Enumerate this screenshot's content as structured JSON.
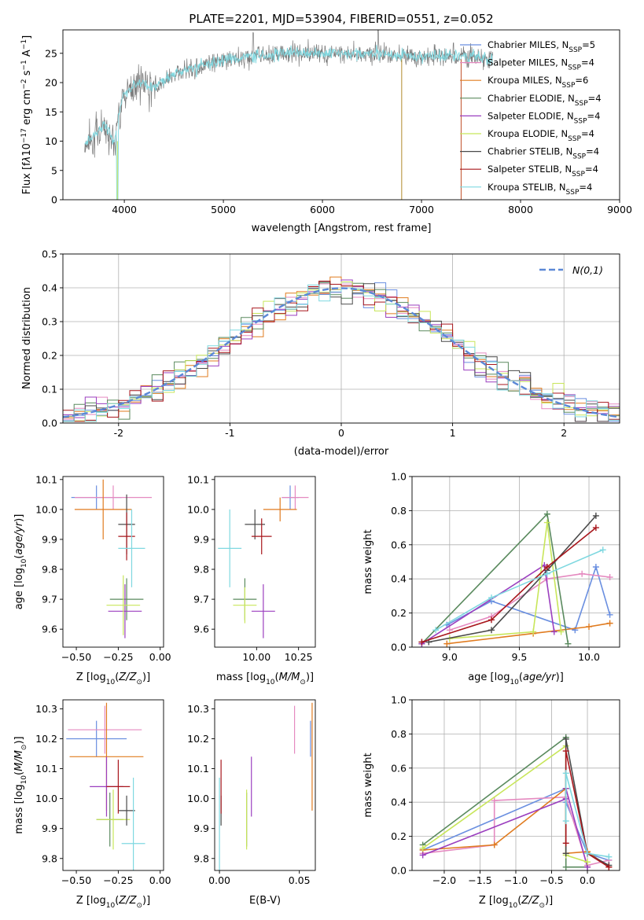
{
  "title": "PLATE=2201, MJD=53904, FIBERID=0551, z=0.052",
  "colors": {
    "Chabrier MILES": "#6a8fe0",
    "Salpeter MILES": "#e58ac0",
    "Kroupa MILES": "#e07b1f",
    "Chabrier ELODIE": "#5a8a5e",
    "Salpeter ELODIE": "#9b3fbf",
    "Kroupa ELODIE": "#c8e65a",
    "Chabrier STELIB": "#4a4a4a",
    "Salpeter STELIB": "#a8161c",
    "Kroupa STELIB": "#7fd8e0"
  },
  "legend_spectrum": [
    {
      "name": "Chabrier MILES",
      "nssp": "5"
    },
    {
      "name": "Salpeter MILES",
      "nssp": "4"
    },
    {
      "name": "Kroupa MILES",
      "nssp": "6"
    },
    {
      "name": "Chabrier ELODIE",
      "nssp": "4"
    },
    {
      "name": "Salpeter ELODIE",
      "nssp": "4"
    },
    {
      "name": "Kroupa ELODIE",
      "nssp": "4"
    },
    {
      "name": "Chabrier STELIB",
      "nssp": "4"
    },
    {
      "name": "Salpeter STELIB",
      "nssp": "4"
    },
    {
      "name": "Kroupa STELIB",
      "nssp": "4"
    }
  ],
  "chart_data": [
    {
      "id": "spectrum",
      "type": "line",
      "xlabel": "wavelength [Angstrom, rest frame]",
      "ylabel": "Flux [f_λ 10^-17 erg cm^-2 s^-1 A^-1]",
      "xlim": [
        3380,
        9000
      ],
      "ylim": [
        0,
        29
      ],
      "xticks": [
        4000,
        5000,
        6000,
        7000,
        8000,
        9000
      ],
      "yticks": [
        0,
        5,
        10,
        15,
        20,
        25
      ],
      "grid": false,
      "legend": "top-right",
      "continuum": [
        [
          3600,
          9.5
        ],
        [
          3700,
          11
        ],
        [
          3800,
          13
        ],
        [
          3900,
          10
        ],
        [
          3950,
          15
        ],
        [
          4000,
          18
        ],
        [
          4100,
          19.5
        ],
        [
          4200,
          20
        ],
        [
          4300,
          19
        ],
        [
          4400,
          20.5
        ],
        [
          4500,
          21.5
        ],
        [
          4700,
          22.5
        ],
        [
          4900,
          23.5
        ],
        [
          5100,
          24
        ],
        [
          5300,
          24.5
        ],
        [
          5600,
          25
        ],
        [
          6000,
          25
        ],
        [
          6500,
          25
        ],
        [
          7000,
          24.5
        ],
        [
          7500,
          24.5
        ],
        [
          7700,
          24
        ]
      ],
      "features": [
        {
          "description": "drop near 3930",
          "x": 3930,
          "y": 0
        },
        {
          "description": "spike near 6563",
          "x": 6563,
          "y": 29
        },
        {
          "description": "drop near 6800",
          "x": 6800,
          "y": 0
        },
        {
          "description": "drop near 7400",
          "x": 7400,
          "y": 0
        }
      ]
    },
    {
      "id": "residual_histogram",
      "type": "histogram",
      "xlabel": "(data-model)/error",
      "ylabel": "Normed distribution",
      "xlim": [
        -2.5,
        2.5
      ],
      "ylim": [
        0,
        0.5
      ],
      "xticks": [
        -2,
        -1,
        0,
        1,
        2
      ],
      "yticks": [
        0.0,
        0.1,
        0.2,
        0.3,
        0.4,
        0.5
      ],
      "grid": true,
      "legend": "top-right",
      "legend_label": "N(0,1)",
      "bin_width": 0.1,
      "reference_curve": "normal pdf mean 0 sigma 1"
    },
    {
      "id": "age_vs_Z",
      "type": "errorbar",
      "xlabel": "Z [log10(Z/Z☉)]",
      "ylabel": "age [log10(age/yr)]",
      "xlim": [
        -0.58,
        0.02
      ],
      "ylim": [
        9.54,
        10.11
      ],
      "xticks": [
        -0.5,
        -0.25,
        0.0
      ],
      "yticks": [
        9.6,
        9.7,
        9.8,
        9.9,
        10.0,
        10.1
      ],
      "points": [
        {
          "model": "Chabrier MILES",
          "x": -0.38,
          "xerr": 0.15,
          "y": 10.04,
          "yerr": 0.04
        },
        {
          "model": "Salpeter MILES",
          "x": -0.28,
          "xerr": 0.23,
          "y": 10.04,
          "yerr": 0.04
        },
        {
          "model": "Kroupa MILES",
          "x": -0.34,
          "xerr": 0.17,
          "y": 10.0,
          "yerr": 0.1
        },
        {
          "model": "Chabrier ELODIE",
          "x": -0.2,
          "xerr": 0.1,
          "y": 9.7,
          "yerr": 0.07
        },
        {
          "model": "Salpeter ELODIE",
          "x": -0.21,
          "xerr": 0.1,
          "y": 9.66,
          "yerr": 0.09
        },
        {
          "model": "Kroupa ELODIE",
          "x": -0.22,
          "xerr": 0.1,
          "y": 9.68,
          "yerr": 0.1
        },
        {
          "model": "Chabrier STELIB",
          "x": -0.2,
          "xerr": 0.05,
          "y": 9.95,
          "yerr": 0.1
        },
        {
          "model": "Salpeter STELIB",
          "x": -0.2,
          "xerr": 0.05,
          "y": 9.91,
          "yerr": 0.08
        },
        {
          "model": "Kroupa STELIB",
          "x": -0.17,
          "xerr": 0.08,
          "y": 9.87,
          "yerr": 0.13
        }
      ]
    },
    {
      "id": "age_vs_mass",
      "type": "errorbar",
      "xlabel": "mass [log10(M/M☉)]",
      "ylabel": "",
      "xlim": [
        9.75,
        10.35
      ],
      "ylim": [
        9.54,
        10.11
      ],
      "xticks": [
        10.0,
        10.25
      ],
      "yticks": [
        9.6,
        9.7,
        9.8,
        9.9,
        10.0,
        10.1
      ],
      "points": [
        {
          "model": "Chabrier MILES",
          "x": 10.2,
          "xerr": 0.05,
          "y": 10.04,
          "yerr": 0.04
        },
        {
          "model": "Salpeter MILES",
          "x": 10.23,
          "xerr": 0.08,
          "y": 10.04,
          "yerr": 0.04
        },
        {
          "model": "Kroupa MILES",
          "x": 10.14,
          "xerr": 0.1,
          "y": 10.0,
          "yerr": 0.04
        },
        {
          "model": "Chabrier ELODIE",
          "x": 9.93,
          "xerr": 0.07,
          "y": 9.7,
          "yerr": 0.07
        },
        {
          "model": "Salpeter ELODIE",
          "x": 10.04,
          "xerr": 0.07,
          "y": 9.66,
          "yerr": 0.09
        },
        {
          "model": "Kroupa ELODIE",
          "x": 9.93,
          "xerr": 0.07,
          "y": 9.68,
          "yerr": 0.06
        },
        {
          "model": "Chabrier STELIB",
          "x": 9.99,
          "xerr": 0.06,
          "y": 9.95,
          "yerr": 0.05
        },
        {
          "model": "Salpeter STELIB",
          "x": 10.03,
          "xerr": 0.06,
          "y": 9.91,
          "yerr": 0.06
        },
        {
          "model": "Kroupa STELIB",
          "x": 9.84,
          "xerr": 0.07,
          "y": 9.87,
          "yerr": 0.13
        }
      ]
    },
    {
      "id": "massweight_vs_age",
      "type": "line",
      "xlabel": "age [log10(age/yr)]",
      "ylabel": "mass weight",
      "xlim": [
        8.73,
        10.22
      ],
      "ylim": [
        0,
        1.0
      ],
      "xticks": [
        9.0,
        9.5,
        10.0
      ],
      "yticks": [
        0.0,
        0.2,
        0.4,
        0.6,
        0.8,
        1.0
      ],
      "grid": true,
      "series": [
        {
          "model": "Chabrier MILES",
          "x": [
            8.98,
            9.3,
            9.9,
            10.05,
            10.15
          ],
          "y": [
            0.13,
            0.27,
            0.1,
            0.47,
            0.19
          ]
        },
        {
          "model": "Salpeter MILES",
          "x": [
            9.0,
            9.3,
            9.7,
            9.95,
            10.15
          ],
          "y": [
            0.1,
            0.18,
            0.4,
            0.43,
            0.41
          ]
        },
        {
          "model": "Kroupa MILES",
          "x": [
            8.98,
            9.6,
            10.0,
            10.15
          ],
          "y": [
            0.02,
            0.08,
            0.12,
            0.14
          ]
        },
        {
          "model": "Chabrier ELODIE",
          "x": [
            8.8,
            9.7,
            9.85
          ],
          "y": [
            0.02,
            0.78,
            0.02
          ]
        },
        {
          "model": "Salpeter ELODIE",
          "x": [
            8.8,
            9.68,
            9.75
          ],
          "y": [
            0.02,
            0.48,
            0.09
          ]
        },
        {
          "model": "Kroupa ELODIE",
          "x": [
            9.0,
            9.6,
            9.7,
            9.8
          ],
          "y": [
            0.05,
            0.09,
            0.73,
            0.09
          ]
        },
        {
          "model": "Chabrier STELIB",
          "x": [
            8.85,
            9.3,
            9.7,
            10.05
          ],
          "y": [
            0.03,
            0.1,
            0.45,
            0.77
          ]
        },
        {
          "model": "Salpeter STELIB",
          "x": [
            8.8,
            9.3,
            9.7,
            10.05
          ],
          "y": [
            0.03,
            0.16,
            0.47,
            0.7
          ]
        },
        {
          "model": "Kroupa STELIB",
          "x": [
            8.9,
            9.3,
            9.7,
            10.1
          ],
          "y": [
            0.1,
            0.29,
            0.43,
            0.57
          ]
        }
      ]
    },
    {
      "id": "mass_vs_Z",
      "type": "errorbar",
      "xlabel": "Z [log10(Z/Z☉)]",
      "ylabel": "mass [log10(M/M☉)]",
      "xlim": [
        -0.58,
        0.02
      ],
      "ylim": [
        9.76,
        10.33
      ],
      "xticks": [
        -0.5,
        -0.25,
        0.0
      ],
      "yticks": [
        9.8,
        9.9,
        10.0,
        10.1,
        10.2,
        10.3
      ],
      "points": [
        {
          "model": "Chabrier MILES",
          "x": -0.38,
          "xerr": 0.18,
          "y": 10.2,
          "yerr": 0.06
        },
        {
          "model": "Salpeter MILES",
          "x": -0.33,
          "xerr": 0.22,
          "y": 10.23,
          "yerr": 0.08
        },
        {
          "model": "Kroupa MILES",
          "x": -0.32,
          "xerr": 0.22,
          "y": 10.14,
          "yerr": 0.18
        },
        {
          "model": "Chabrier ELODIE",
          "x": -0.3,
          "xerr": 0.08,
          "y": 9.93,
          "yerr": 0.09
        },
        {
          "model": "Salpeter ELODIE",
          "x": -0.32,
          "xerr": 0.1,
          "y": 10.04,
          "yerr": 0.1
        },
        {
          "model": "Kroupa ELODIE",
          "x": -0.28,
          "xerr": 0.1,
          "y": 9.93,
          "yerr": 0.1
        },
        {
          "model": "Chabrier STELIB",
          "x": -0.2,
          "xerr": 0.05,
          "y": 9.96,
          "yerr": 0.05
        },
        {
          "model": "Salpeter STELIB",
          "x": -0.25,
          "xerr": 0.07,
          "y": 10.04,
          "yerr": 0.09
        },
        {
          "model": "Kroupa STELIB",
          "x": -0.16,
          "xerr": 0.07,
          "y": 9.85,
          "yerr": 0.22
        }
      ]
    },
    {
      "id": "mass_vs_EBV",
      "type": "errorbar",
      "xlabel": "E(B-V)",
      "ylabel": "",
      "xlim": [
        -0.003,
        0.06
      ],
      "ylim": [
        9.76,
        10.33
      ],
      "xticks": [
        0.0,
        0.05
      ],
      "yticks": [
        9.8,
        9.9,
        10.0,
        10.1,
        10.2,
        10.3
      ],
      "points": [
        {
          "model": "Chabrier MILES",
          "x": 0.057,
          "y": 10.2,
          "yerr": 0.06
        },
        {
          "model": "Salpeter MILES",
          "x": 0.047,
          "y": 10.23,
          "yerr": 0.08
        },
        {
          "model": "Kroupa MILES",
          "x": 0.058,
          "y": 10.14,
          "yerr": 0.18
        },
        {
          "model": "Chabrier ELODIE",
          "x": 0.017,
          "y": 9.93,
          "yerr": 0.09
        },
        {
          "model": "Salpeter ELODIE",
          "x": 0.02,
          "y": 10.04,
          "yerr": 0.1
        },
        {
          "model": "Kroupa ELODIE",
          "x": 0.017,
          "y": 9.93,
          "yerr": 0.1
        },
        {
          "model": "Chabrier STELIB",
          "x": 0.001,
          "y": 9.96,
          "yerr": 0.05
        },
        {
          "model": "Salpeter STELIB",
          "x": 0.001,
          "y": 10.04,
          "yerr": 0.09
        },
        {
          "model": "Kroupa STELIB",
          "x": 0.0,
          "y": 9.85,
          "yerr": 0.22
        }
      ]
    },
    {
      "id": "massweight_vs_Z",
      "type": "line",
      "xlabel": "Z [log10(Z/Z☉)]",
      "ylabel": "mass weight",
      "xlim": [
        -2.45,
        0.45
      ],
      "ylim": [
        0,
        1.0
      ],
      "xticks": [
        -2.0,
        -1.5,
        -1.0,
        -0.5,
        0.0
      ],
      "yticks": [
        0.0,
        0.2,
        0.4,
        0.6,
        0.8,
        1.0
      ],
      "grid": true,
      "series": [
        {
          "model": "Chabrier MILES",
          "x": [
            -2.3,
            -0.3,
            -0.3,
            0.0,
            0.3
          ],
          "y": [
            0.12,
            0.48,
            0.4,
            0.1,
            0.06
          ]
        },
        {
          "model": "Salpeter MILES",
          "x": [
            -2.3,
            -1.3,
            -1.3,
            -0.3,
            0.0,
            0.3
          ],
          "y": [
            0.1,
            0.15,
            0.41,
            0.43,
            0.03,
            0.06
          ]
        },
        {
          "model": "Kroupa MILES",
          "x": [
            -2.3,
            -1.3,
            -0.3,
            -0.3,
            0.0,
            0.3
          ],
          "y": [
            0.12,
            0.15,
            0.48,
            0.1,
            0.11,
            0.02
          ]
        },
        {
          "model": "Chabrier ELODIE",
          "x": [
            -2.3,
            -0.3,
            -0.3,
            0.0
          ],
          "y": [
            0.15,
            0.78,
            0.02,
            0.02
          ]
        },
        {
          "model": "Salpeter ELODIE",
          "x": [
            -2.3,
            -0.3,
            -0.3,
            0.0
          ],
          "y": [
            0.09,
            0.42,
            0.48,
            0.02
          ]
        },
        {
          "model": "Kroupa ELODIE",
          "x": [
            -2.3,
            -0.3,
            -0.3,
            0.0
          ],
          "y": [
            0.13,
            0.73,
            0.09,
            0.05
          ]
        },
        {
          "model": "Chabrier STELIB",
          "x": [
            -0.3,
            -0.3,
            0.0,
            0.3
          ],
          "y": [
            0.1,
            0.77,
            0.1,
            0.03
          ]
        },
        {
          "model": "Salpeter STELIB",
          "x": [
            -0.3,
            -0.3,
            0.0,
            0.3
          ],
          "y": [
            0.16,
            0.7,
            0.1,
            0.02
          ]
        },
        {
          "model": "Kroupa STELIB",
          "x": [
            -0.3,
            -0.3,
            0.0,
            0.3
          ],
          "y": [
            0.29,
            0.57,
            0.1,
            0.08
          ]
        }
      ]
    }
  ]
}
